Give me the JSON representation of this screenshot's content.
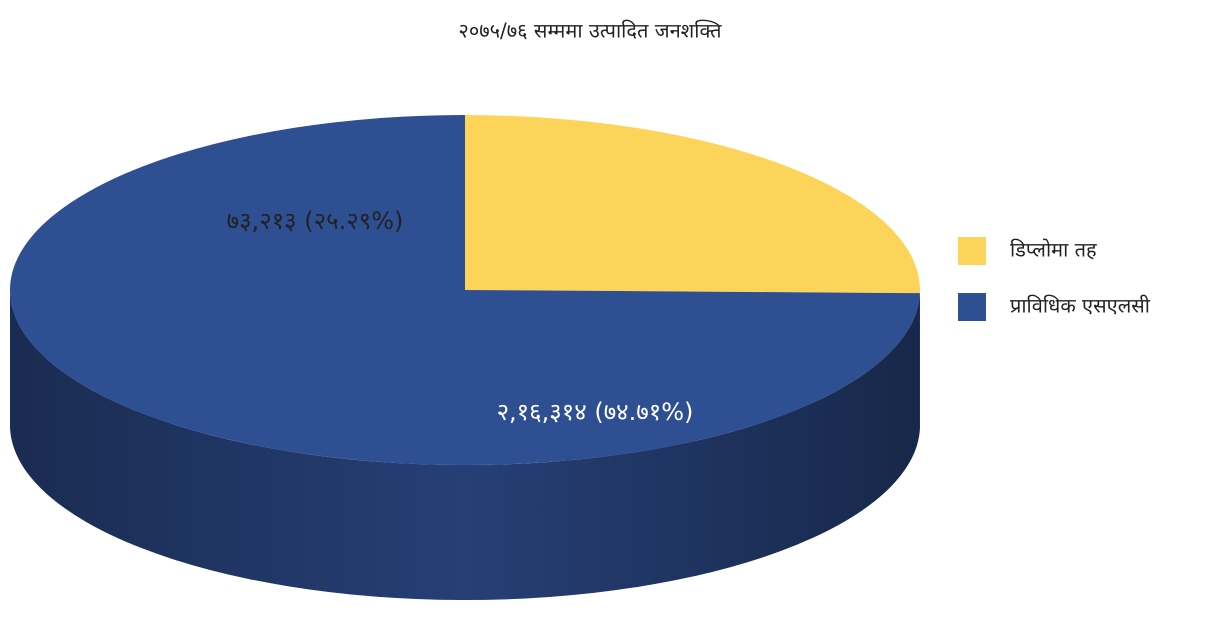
{
  "chart_data": {
    "type": "pie",
    "title": "२०७५/७६ सम्ममा उत्पादित जनशक्ति",
    "series": [
      {
        "name": "डिप्लोमा तह",
        "color": "#fdd45a",
        "values": [
          73213
        ],
        "value_labels": [
          "७३,२१३ (२५.२९%)"
        ]
      },
      {
        "name": "प्राविधिक एसएलसी",
        "color": "#2f4f93",
        "values": [
          216314
        ],
        "value_labels": [
          "२,१६,३१४ (७४.७१%)"
        ]
      }
    ],
    "legend": "right"
  }
}
